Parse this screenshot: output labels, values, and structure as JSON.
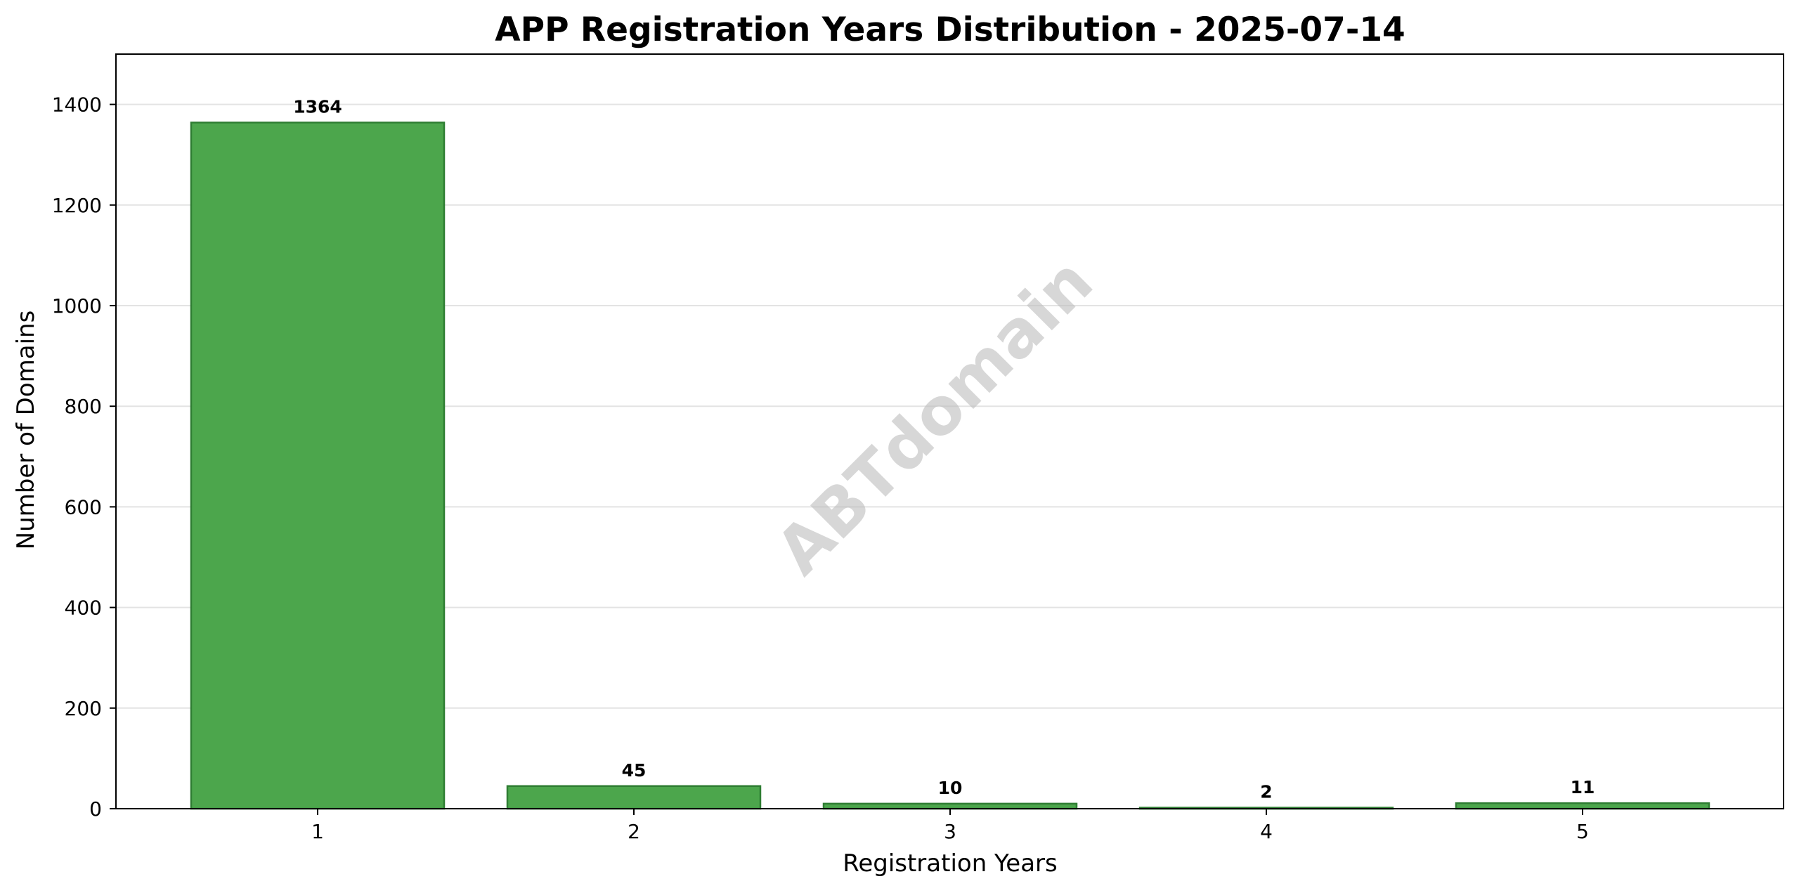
{
  "chart_data": {
    "type": "bar",
    "title": "APP Registration Years Distribution - 2025-07-14",
    "xlabel": "Registration Years",
    "ylabel": "Number of Domains",
    "categories": [
      "1",
      "2",
      "3",
      "4",
      "5"
    ],
    "values": [
      1364,
      45,
      10,
      2,
      11
    ],
    "data_labels": [
      "1364",
      "45",
      "10",
      "2",
      "11"
    ],
    "ylim": [
      0,
      1500
    ],
    "yticks": [
      0,
      200,
      400,
      600,
      800,
      1000,
      1200,
      1400
    ],
    "ytick_labels": [
      "0",
      "200",
      "400",
      "600",
      "800",
      "1000",
      "1200",
      "1400"
    ],
    "grid": "horizontal",
    "legend": "none",
    "bar_color": "#4ca64c",
    "bar_edge_color": "#2e7d32",
    "watermark": "ABTdomain"
  }
}
